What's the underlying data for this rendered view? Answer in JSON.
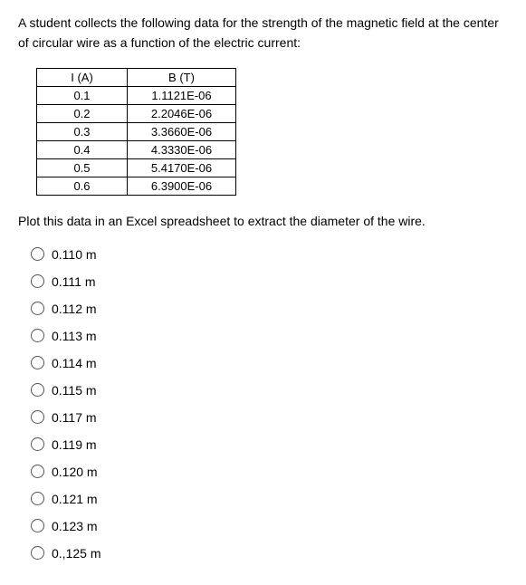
{
  "intro": "A student collects the following data for the strength of the magnetic field at the center of circular wire as a function of the electric current:",
  "table": {
    "headers": {
      "i": "I (A)",
      "b": "B (T)"
    },
    "rows": [
      {
        "i": "0.1",
        "b": "1.1121E-06"
      },
      {
        "i": "0.2",
        "b": "2.2046E-06"
      },
      {
        "i": "0.3",
        "b": "3.3660E-06"
      },
      {
        "i": "0.4",
        "b": "4.3330E-06"
      },
      {
        "i": "0.5",
        "b": "5.4170E-06"
      },
      {
        "i": "0.6",
        "b": "6.3900E-06"
      }
    ]
  },
  "prompt": "Plot this data in an Excel spreadsheet to extract the diameter of the wire.",
  "options": [
    "0.110 m",
    "0.111 m",
    "0.112 m",
    "0.113 m",
    "0.114 m",
    "0.115 m",
    "0.117 m",
    "0.119 m",
    "0.120 m",
    "0.121 m",
    "0.123 m",
    "0.,125 m"
  ]
}
